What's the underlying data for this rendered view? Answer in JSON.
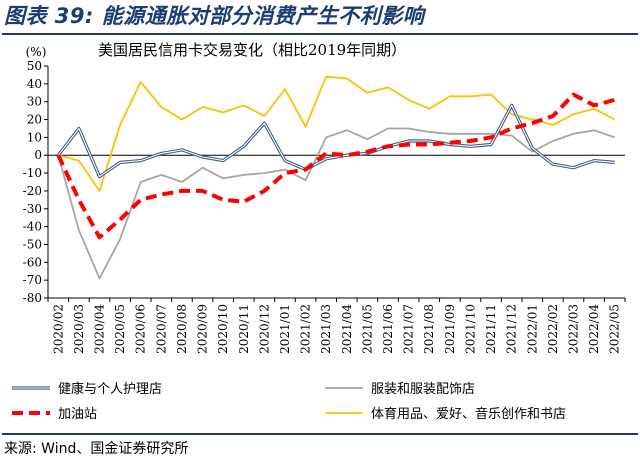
{
  "figure_title": "图表 39: 能源通胀对部分消费产生不利影响",
  "source": "来源: Wind、国金证券研究所",
  "chart_data": {
    "type": "line",
    "title": "美国居民信用卡交易变化（相比2019年同期）",
    "ylabel": "(%)",
    "xlabel": "",
    "ylim": [
      -80,
      50
    ],
    "yticks": [
      50,
      40,
      30,
      20,
      10,
      0,
      -10,
      -20,
      -30,
      -40,
      -50,
      -60,
      -70,
      -80
    ],
    "grid": false,
    "legend_position": "bottom",
    "x": [
      "2020/02",
      "2020/03",
      "2020/04",
      "2020/05",
      "2020/06",
      "2020/07",
      "2020/08",
      "2020/09",
      "2020/10",
      "2020/11",
      "2020/12",
      "2021/01",
      "2021/02",
      "2021/03",
      "2021/04",
      "2021/05",
      "2021/06",
      "2021/07",
      "2021/08",
      "2021/09",
      "2021/10",
      "2021/11",
      "2021/12",
      "2022/01",
      "2022/02",
      "2022/03",
      "2022/04",
      "2022/05"
    ],
    "series": [
      {
        "name": "健康与个人护理店",
        "color": "#3c5a82",
        "style": "double",
        "values": [
          0,
          15,
          -12,
          -4,
          -3,
          1,
          3,
          -1,
          -3,
          5,
          18,
          -3,
          -8,
          -2,
          0,
          1,
          5,
          8,
          8,
          6,
          5,
          6,
          28,
          4,
          -5,
          -7,
          -3,
          -4
        ]
      },
      {
        "name": "服装和服装配饰店",
        "color": "#a6a6a6",
        "style": "solid",
        "values": [
          0,
          -42,
          -69,
          -47,
          -15,
          -11,
          -15,
          -7,
          -13,
          -11,
          -10,
          -8,
          -14,
          10,
          14,
          9,
          15,
          15,
          13,
          12,
          12,
          12,
          11,
          2,
          8,
          12,
          14,
          10
        ]
      },
      {
        "name": "加油站",
        "color": "#ff0000",
        "style": "dash",
        "values": [
          0,
          -25,
          -46,
          -36,
          -25,
          -22,
          -20,
          -20,
          -25,
          -26,
          -20,
          -10,
          -8,
          1,
          0,
          2,
          5,
          6,
          6,
          7,
          8,
          10,
          15,
          18,
          22,
          34,
          28,
          31
        ]
      },
      {
        "name": "体育用品、爱好、音乐创作和书店",
        "color": "#ffc000",
        "style": "solid",
        "values": [
          0,
          -3,
          -20,
          17,
          41,
          27,
          20,
          27,
          24,
          28,
          22,
          37,
          16,
          44,
          43,
          35,
          38,
          31,
          26,
          33,
          33,
          34,
          23,
          20,
          17,
          23,
          26,
          20
        ]
      }
    ]
  }
}
